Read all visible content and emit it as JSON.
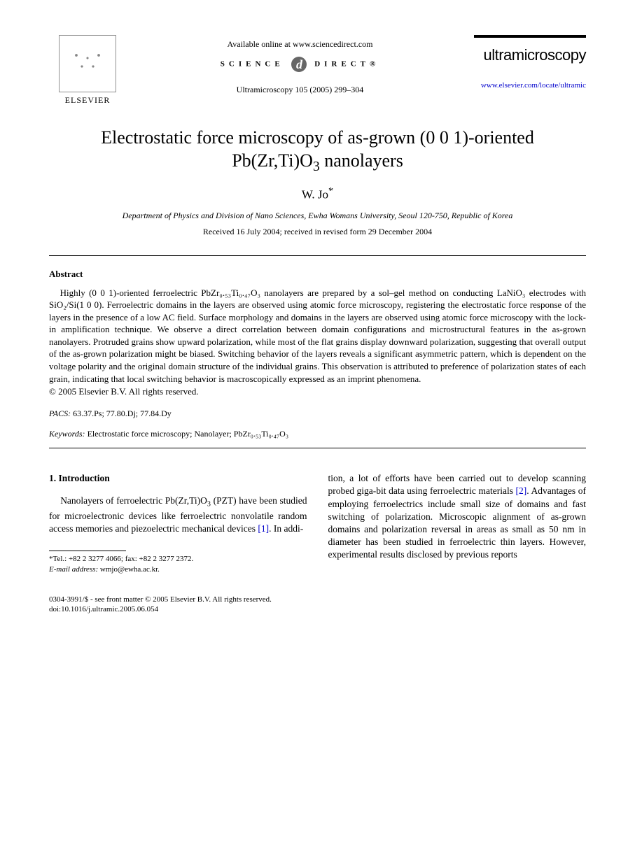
{
  "header": {
    "publisher": "ELSEVIER",
    "available_online": "Available online at www.sciencedirect.com",
    "sd_left": "SCIENCE",
    "sd_right": "DIRECT®",
    "journal_ref": "Ultramicroscopy 105 (2005) 299–304",
    "journal_name": "ultramicroscopy",
    "journal_url": "www.elsevier.com/locate/ultramic"
  },
  "title_line1": "Electrostatic force microscopy of as-grown (0 0 1)-oriented",
  "title_line2_pre": "Pb(Zr,Ti)O",
  "title_line2_sub": "3",
  "title_line2_post": " nanolayers",
  "author": "W. Jo",
  "author_mark": "*",
  "affiliation": "Department of Physics and Division of Nano Sciences, Ewha Womans University, Seoul 120-750, Republic of Korea",
  "dates": "Received 16 July 2004; received in revised form 29 December 2004",
  "abstract_label": "Abstract",
  "abstract_text": "Highly (0 0 1)-oriented ferroelectric PbZr₀.₅₃Ti₀.₄₇O₃ nanolayers are prepared by a sol–gel method on conducting LaNiO₃ electrodes with SiO₂/Si(1 0 0). Ferroelectric domains in the layers are observed using atomic force microscopy, registering the electrostatic force response of the layers in the presence of a low AC field. Surface morphology and domains in the layers are observed using atomic force microscopy with the lock-in amplification technique. We observe a direct correlation between domain configurations and microstructural features in the as-grown nanolayers. Protruded grains show upward polarization, while most of the flat grains display downward polarization, suggesting that overall output of the as-grown polarization might be biased. Switching behavior of the layers reveals a significant asymmetric pattern, which is dependent on the voltage polarity and the original domain structure of the individual grains. This observation is attributed to preference of polarization states of each grain, indicating that local switching behavior is macroscopically expressed as an imprint phenomena.",
  "copyright": "© 2005 Elsevier B.V. All rights reserved.",
  "pacs_label": "PACS:",
  "pacs_values": " 63.37.Ps; 77.80.Dj; 77.84.Dy",
  "keywords_label": "Keywords:",
  "keywords_values": " Electrostatic force microscopy; Nanolayer; PbZr₀.₅₃Ti₀.₄₇O₃",
  "section1_head": "1.  Introduction",
  "col1_text_a": "Nanolayers of ferroelectric Pb(Zr,Ti)O",
  "col1_text_a_sub": "3",
  "col1_text_b": " (PZT) have been studied for microelectronic devices like ferroelectric nonvolatile random access memories and piezoelectric mechanical devices ",
  "ref1": "[1]",
  "col1_text_c": ". In addi-",
  "col2_text_a": "tion, a lot of efforts have been carried out to develop scanning probed giga-bit data using ferroelectric materials ",
  "ref2": "[2]",
  "col2_text_b": ". Advantages of employing ferroelectrics include small size of domains and fast switching of polarization. Microscopic alignment of as-grown domains and polarization reversal in areas as small as 50 nm in diameter has been studied in ferroelectric thin layers. However, experimental results disclosed by previous reports",
  "footnote_tel": "*Tel.: +82 2 3277 4066; fax: +82 2 3277 2372.",
  "footnote_email_label": "E-mail address:",
  "footnote_email": " wmjo@ewha.ac.kr.",
  "footer_line1": "0304-3991/$ - see front matter © 2005 Elsevier B.V. All rights reserved.",
  "footer_line2": "doi:10.1016/j.ultramic.2005.06.054"
}
